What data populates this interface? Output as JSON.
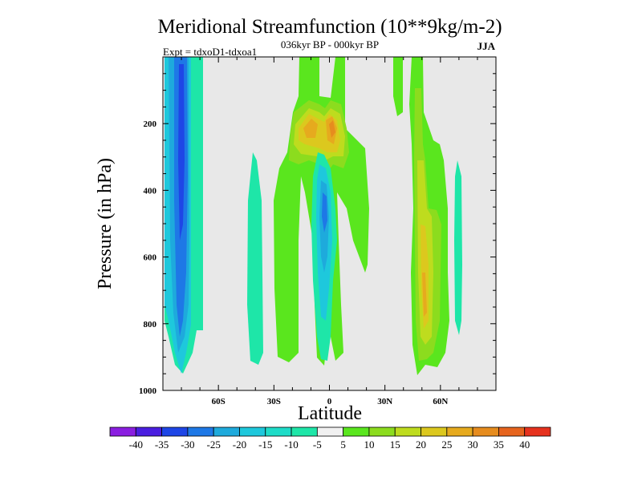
{
  "chart_data": {
    "type": "heatmap",
    "title": "Meridional Streamfunction (10**9kg/m-2)",
    "subtitle": "036kyr BP - 000kyr BP",
    "left_label": "Expt = tdxoD1-tdxoa1",
    "right_label": "JJA",
    "xlabel": "Latitude",
    "ylabel": "Pressure (in hPa)",
    "xlim": [
      -90,
      90
    ],
    "ylim": [
      1000,
      0
    ],
    "x_ticks": [
      -60,
      -30,
      0,
      30,
      60
    ],
    "x_tick_labels": [
      "60S",
      "30S",
      "0",
      "30N",
      "60N"
    ],
    "y_ticks": [
      200,
      400,
      600,
      800,
      1000
    ],
    "y_tick_labels": [
      "200",
      "400",
      "600",
      "800",
      "1000"
    ],
    "colorbar": {
      "labels": [
        "-40",
        "-35",
        "-30",
        "-25",
        "-20",
        "-15",
        "-10",
        "-5",
        "5",
        "10",
        "15",
        "20",
        "25",
        "30",
        "35",
        "40"
      ],
      "colors": [
        "#8a1ee0",
        "#4a1ee0",
        "#1e46e6",
        "#1e78e6",
        "#1eaadc",
        "#1ec8dc",
        "#1edcc8",
        "#1ee6a8",
        "#f0f0f0",
        "#5ae61e",
        "#8cdc1e",
        "#bedc1e",
        "#dcc81e",
        "#e6aa1e",
        "#e68c1e",
        "#e6641e",
        "#e6321e"
      ]
    },
    "fields": [
      {
        "name": "SH negative cell",
        "lat_range": [
          -90,
          -75
        ],
        "p_range": [
          0,
          950
        ],
        "max_level": "-25"
      },
      {
        "name": "Equatorial negative cell",
        "lat_range": [
          -10,
          5
        ],
        "p_range": [
          270,
          910
        ],
        "max_level": "-20"
      },
      {
        "name": "Subtropical negative band",
        "lat_range": [
          -45,
          -40
        ],
        "p_range": [
          250,
          930
        ],
        "max_level": "-10"
      },
      {
        "name": "High latitude negative band",
        "lat_range": [
          67,
          72
        ],
        "p_range": [
          270,
          790
        ],
        "max_level": "-10"
      },
      {
        "name": "Upper tropical positive cell",
        "lat_range": [
          -22,
          10
        ],
        "p_range": [
          100,
          310
        ],
        "max_level": "30"
      },
      {
        "name": "Tropical positive band",
        "lat_range": [
          -32,
          20
        ],
        "p_range": [
          0,
          920
        ],
        "max_level": "10"
      },
      {
        "name": "NH midlatitude positive band",
        "lat_range": [
          45,
          65
        ],
        "p_range": [
          0,
          970
        ],
        "max_level": "25"
      }
    ]
  }
}
